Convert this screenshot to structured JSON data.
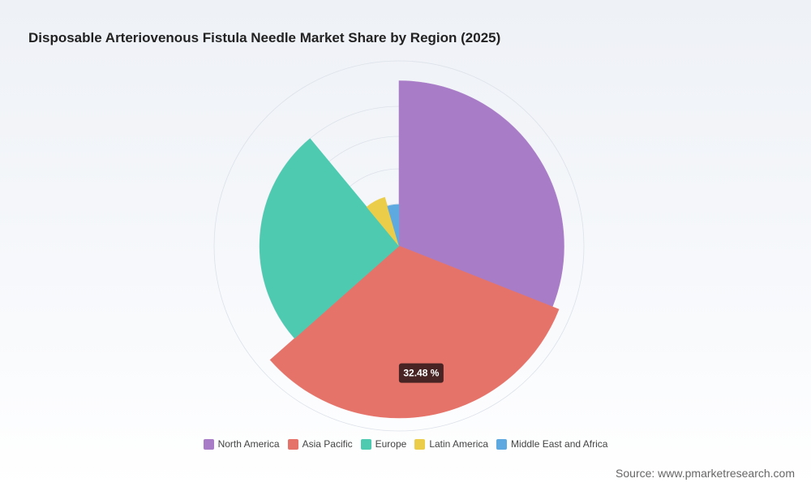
{
  "chart_data": {
    "type": "pie",
    "title": "Disposable Arteriovenous Fistula Needle Market Share by Region (2025)",
    "categories": [
      "North America",
      "Asia Pacific",
      "Europe",
      "Latin America",
      "Middle East and Africa"
    ],
    "values": [
      31.0,
      32.48,
      25.5,
      6.5,
      4.52
    ],
    "colors": [
      "#a87cc6",
      "#e6736a",
      "#4ecab1",
      "#eccd4a",
      "#5eaae0"
    ],
    "unit": "%",
    "style": "nightingale-rose",
    "legend": "bottom-center",
    "tooltip": {
      "category": "Asia Pacific",
      "label": "32.48 %"
    }
  },
  "source": "Source: www.pmarketresearch.com"
}
